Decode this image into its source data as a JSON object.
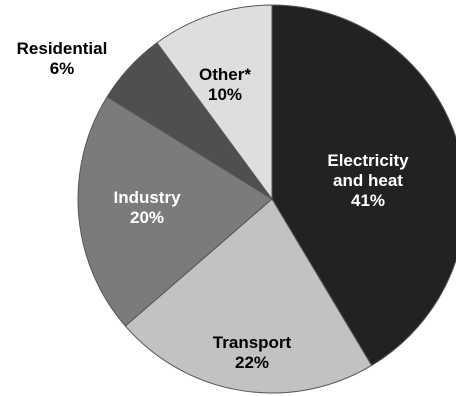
{
  "chart_data": {
    "type": "pie",
    "title": "",
    "slices": [
      {
        "label_lines": [
          "Electricity",
          "and heat"
        ],
        "value_text": "41%",
        "value": 41,
        "color": "#222222",
        "text_color": "#ffffff"
      },
      {
        "label_lines": [
          "Transport"
        ],
        "value_text": "22%",
        "value": 22,
        "color": "#c2c2c2",
        "text_color": "#000000"
      },
      {
        "label_lines": [
          "Industry"
        ],
        "value_text": "20%",
        "value": 20,
        "color": "#7b7b7b",
        "text_color": "#ffffff"
      },
      {
        "label_lines": [
          "Residential"
        ],
        "value_text": "6%",
        "value": 6,
        "color": "#4f4f4f",
        "text_color": "#000000"
      },
      {
        "label_lines": [
          "Other*"
        ],
        "value_text": "10%",
        "value": 10,
        "color": "#dedede",
        "text_color": "#000000"
      }
    ]
  }
}
